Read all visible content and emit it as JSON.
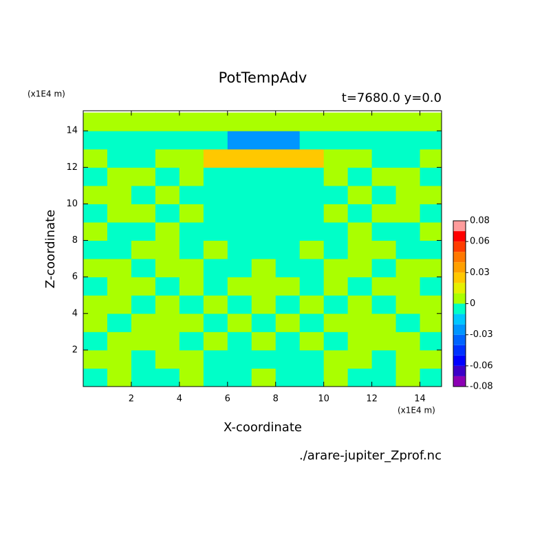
{
  "chart_data": {
    "type": "contour",
    "title": "PotTempAdv",
    "subtitle": "t=7680.0 y=0.0",
    "x_label": "X-coordinate",
    "y_label": "Z-coordinate",
    "x_unit": "(x1E4 m)",
    "y_unit": "(x1E4 m)",
    "source": "./arare-jupiter_Zprof.nc",
    "xlim": [
      0,
      14.9
    ],
    "ylim": [
      0,
      15.1
    ],
    "xticks": [
      2,
      4,
      6,
      8,
      10,
      12,
      14
    ],
    "yticks": [
      2,
      4,
      6,
      8,
      10,
      12,
      14
    ],
    "x": [
      0.5,
      1.5,
      2.5,
      3.5,
      4.5,
      5.5,
      6.5,
      7.5,
      8.5,
      9.5,
      10.5,
      11.5,
      12.5,
      13.5,
      14.5
    ],
    "y": [
      0.5,
      1.5,
      2.5,
      3.5,
      4.5,
      5.5,
      6.5,
      7.5,
      8.5,
      9.5,
      10.5,
      11.5,
      12.5,
      13.5,
      14.5
    ],
    "z": [
      [
        -0.005,
        0.005,
        -0.005,
        -0.005,
        0.005,
        -0.005,
        -0.005,
        0.005,
        -0.005,
        -0.005,
        0.005,
        -0.005,
        -0.005,
        0.005,
        -0.005
      ],
      [
        0.005,
        0.005,
        -0.005,
        0.005,
        0.005,
        -0.005,
        -0.005,
        -0.005,
        -0.005,
        -0.005,
        0.005,
        0.005,
        -0.005,
        0.005,
        0.005
      ],
      [
        -0.005,
        0.005,
        0.005,
        0.005,
        -0.005,
        0.005,
        -0.005,
        0.005,
        -0.005,
        0.005,
        -0.005,
        0.005,
        0.005,
        0.005,
        -0.005
      ],
      [
        0.005,
        -0.005,
        0.005,
        0.005,
        0.005,
        -0.005,
        0.005,
        -0.005,
        0.005,
        -0.005,
        0.005,
        0.005,
        0.005,
        -0.005,
        0.005
      ],
      [
        0.005,
        0.005,
        -0.005,
        0.005,
        -0.005,
        0.005,
        -0.005,
        0.005,
        -0.005,
        0.005,
        -0.005,
        0.005,
        -0.005,
        0.005,
        0.005
      ],
      [
        -0.005,
        0.005,
        0.005,
        -0.005,
        0.005,
        -0.005,
        0.005,
        0.005,
        0.005,
        -0.005,
        0.005,
        -0.005,
        0.005,
        0.005,
        -0.005
      ],
      [
        0.005,
        0.005,
        -0.005,
        0.005,
        0.005,
        -0.005,
        -0.005,
        0.005,
        -0.005,
        -0.005,
        0.005,
        0.005,
        -0.005,
        0.005,
        0.005
      ],
      [
        -0.005,
        -0.005,
        0.005,
        0.005,
        -0.005,
        0.005,
        -0.005,
        -0.005,
        -0.005,
        0.005,
        -0.005,
        0.005,
        0.005,
        -0.005,
        -0.005
      ],
      [
        0.005,
        -0.005,
        -0.005,
        0.005,
        -0.005,
        -0.005,
        -0.005,
        -0.005,
        -0.005,
        -0.005,
        -0.005,
        0.005,
        -0.005,
        -0.005,
        0.005
      ],
      [
        -0.005,
        0.005,
        0.005,
        -0.005,
        0.005,
        -0.005,
        -0.005,
        -0.005,
        -0.005,
        -0.005,
        0.005,
        -0.005,
        0.005,
        0.005,
        -0.005
      ],
      [
        0.005,
        0.005,
        -0.005,
        0.005,
        -0.005,
        -0.005,
        -0.005,
        -0.005,
        -0.005,
        -0.005,
        -0.005,
        0.005,
        -0.005,
        0.005,
        0.005
      ],
      [
        -0.005,
        0.005,
        0.005,
        -0.005,
        0.005,
        -0.005,
        -0.005,
        -0.005,
        -0.005,
        -0.005,
        0.005,
        -0.005,
        0.005,
        0.005,
        -0.005
      ],
      [
        0.005,
        -0.005,
        -0.005,
        0.005,
        0.005,
        0.025,
        0.025,
        0.025,
        0.025,
        0.025,
        0.005,
        0.005,
        -0.005,
        -0.005,
        0.005
      ],
      [
        -0.005,
        -0.005,
        -0.005,
        -0.005,
        -0.005,
        -0.005,
        -0.025,
        -0.025,
        -0.025,
        -0.005,
        -0.005,
        -0.005,
        -0.005,
        -0.005,
        -0.005
      ],
      [
        0.005,
        0.005,
        0.005,
        0.005,
        0.005,
        0.005,
        0.005,
        0.005,
        0.005,
        0.005,
        0.005,
        0.005,
        0.005,
        0.005,
        0.005
      ]
    ],
    "levels": [
      -0.08,
      -0.07,
      -0.06,
      -0.05,
      -0.04,
      -0.03,
      -0.02,
      -0.01,
      0,
      0.01,
      0.02,
      0.03,
      0.04,
      0.05,
      0.06,
      0.07,
      0.08
    ],
    "colors": [
      "#8c00b4",
      "#3c00c8",
      "#0000ff",
      "#0032ff",
      "#0064ff",
      "#0096ff",
      "#00c8ff",
      "#00ffc8",
      "#aaff00",
      "#e6f000",
      "#ffc800",
      "#ffa000",
      "#ff7800",
      "#ff3c00",
      "#ff0000",
      "#ff9c9c"
    ],
    "colorbar_ticks": [
      -0.08,
      -0.06,
      -0.03,
      0,
      0.03,
      0.06,
      0.08
    ]
  }
}
